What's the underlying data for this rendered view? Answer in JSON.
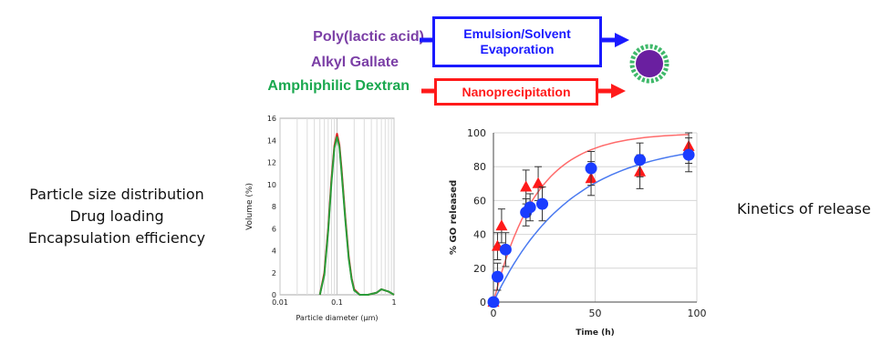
{
  "ingredients": [
    {
      "label": "Poly(lactic acid)",
      "color": "#7b3fa6"
    },
    {
      "label": "Alkyl Gallate",
      "color": "#7b3fa6"
    },
    {
      "label": "Amphiphilic Dextran",
      "color": "#1aa84f"
    }
  ],
  "processes": {
    "emulsion_line1": "Emulsion/Solvent",
    "emulsion_line2": "Evaporation",
    "emulsion_color": "#1a1aff",
    "nano": "Nanoprecipitation",
    "nano_color": "#ff1a1a"
  },
  "left_labels": [
    "Particle size distribution",
    "Drug loading",
    "Encapsulation efficiency"
  ],
  "right_label": "Kinetics of release",
  "chart_data": [
    {
      "type": "line",
      "xlabel": "Particle diameter (µm)",
      "ylabel": "Volume (%)",
      "xscale": "log",
      "xlim": [
        0.01,
        1
      ],
      "ylim": [
        0,
        16
      ],
      "xticks": [
        "0.01",
        "0.1",
        "1"
      ],
      "yticks": [
        "0",
        "2",
        "4",
        "6",
        "8",
        "10",
        "12",
        "14",
        "16"
      ],
      "grid": true,
      "series": [
        {
          "color": "#e02020",
          "x": [
            0.05,
            0.06,
            0.07,
            0.08,
            0.09,
            0.1,
            0.11,
            0.12,
            0.14,
            0.16,
            0.18,
            0.2,
            0.25,
            0.35,
            0.5,
            0.6,
            0.8,
            1.0
          ],
          "y": [
            0,
            2,
            6,
            10.5,
            13.5,
            14.6,
            13.6,
            11.5,
            7,
            3.5,
            1.5,
            0.5,
            0,
            0,
            0.2,
            0.5,
            0.3,
            0
          ]
        },
        {
          "color": "#2a9d3a",
          "x": [
            0.05,
            0.06,
            0.07,
            0.08,
            0.09,
            0.1,
            0.11,
            0.12,
            0.14,
            0.16,
            0.18,
            0.2,
            0.25,
            0.35,
            0.5,
            0.6,
            0.8,
            1.0
          ],
          "y": [
            0,
            1.8,
            5.8,
            10.2,
            13.3,
            14.3,
            13.4,
            11.2,
            6.8,
            3.3,
            1.4,
            0.4,
            0,
            0,
            0.2,
            0.5,
            0.3,
            0
          ]
        }
      ]
    },
    {
      "type": "scatter",
      "xlabel": "Time (h)",
      "ylabel": "% GO released",
      "xlim": [
        0,
        100
      ],
      "ylim": [
        0,
        100
      ],
      "xticks": [
        "0",
        "50",
        "100"
      ],
      "yticks": [
        "0",
        "20",
        "40",
        "60",
        "80",
        "100"
      ],
      "grid": true,
      "series": [
        {
          "marker": "triangle",
          "color": "#ff1a1a",
          "fit_color": "#ff6b6b",
          "x": [
            0,
            2,
            4,
            16,
            22,
            48,
            72,
            96
          ],
          "y": [
            0,
            33,
            45,
            68,
            70,
            73,
            77,
            92
          ],
          "err": [
            0,
            8,
            10,
            10,
            10,
            10,
            10,
            10
          ],
          "fit_rate": 0.048,
          "fit_max": 100
        },
        {
          "marker": "circle",
          "color": "#1a3cff",
          "fit_color": "#4a7af0",
          "x": [
            0,
            2,
            6,
            16,
            18,
            24,
            48,
            72,
            96
          ],
          "y": [
            0,
            15,
            31,
            53,
            56,
            58,
            79,
            84,
            87
          ],
          "err": [
            0,
            8,
            10,
            8,
            8,
            10,
            10,
            10,
            10
          ],
          "fit_rate": 0.027,
          "fit_max": 95
        }
      ]
    }
  ]
}
